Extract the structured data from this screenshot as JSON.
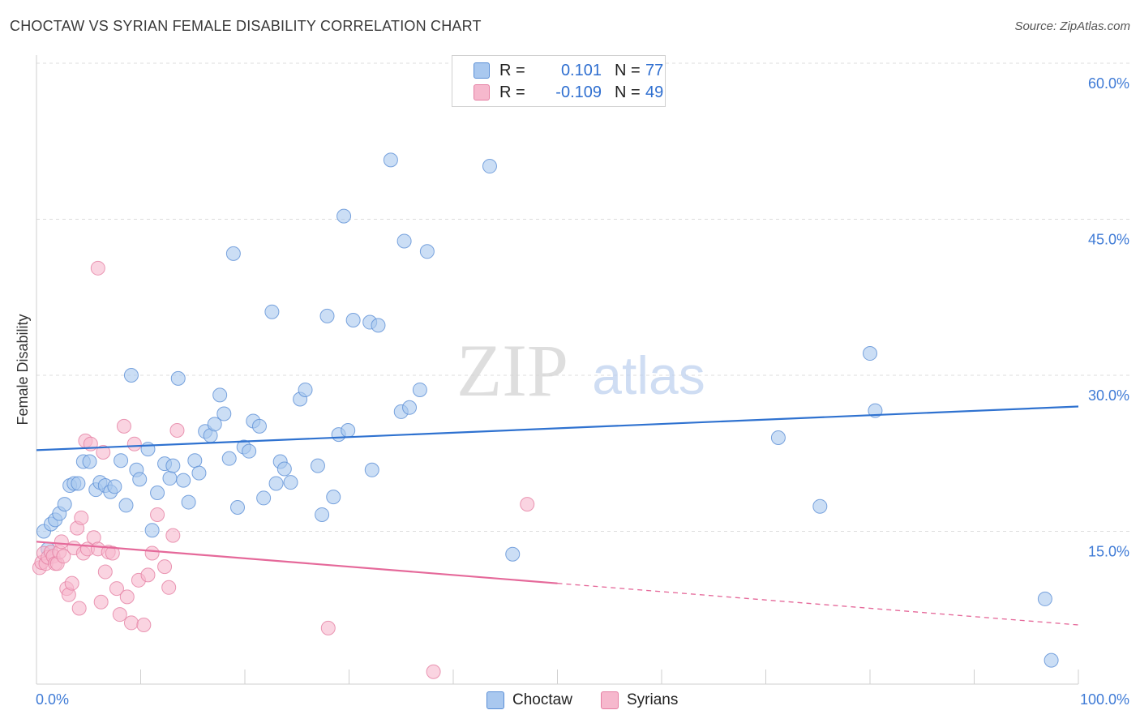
{
  "header": {
    "title": "CHOCTAW VS SYRIAN FEMALE DISABILITY CORRELATION CHART",
    "source": "Source: ZipAtlas.com"
  },
  "watermark": {
    "zip": "ZIP",
    "atlas": "atlas"
  },
  "stats": [
    {
      "r_label": "R =",
      "r_value": "0.101",
      "n_label": "N =",
      "n_value": "77"
    },
    {
      "r_label": "R =",
      "r_value": "-0.109",
      "n_label": "N =",
      "n_value": "49"
    }
  ],
  "legend": {
    "choctaw": "Choctaw",
    "syrians": "Syrians"
  },
  "colors": {
    "choctaw_fill": "#a9c8ef",
    "choctaw_stroke": "#5b8fd6",
    "choctaw_line": "#2f72d0",
    "syrians_fill": "#f6b8cd",
    "syrians_stroke": "#e57fa3",
    "syrians_line": "#e5699a",
    "axis_text": "#3f7bd6",
    "grid": "#dddddd"
  },
  "chart_data": {
    "type": "scatter",
    "title": "CHOCTAW VS SYRIAN FEMALE DISABILITY CORRELATION CHART",
    "xlabel": "",
    "ylabel": "Female Disability",
    "xlim": [
      0,
      100
    ],
    "ylim": [
      0,
      60
    ],
    "x_tick_labels": [
      "0.0%",
      "100.0%"
    ],
    "y_ticks": [
      15,
      30,
      45,
      60
    ],
    "y_tick_labels": [
      "15.0%",
      "30.0%",
      "45.0%",
      "60.0%"
    ],
    "grid": true,
    "series": [
      {
        "name": "Choctaw",
        "trend": {
          "x": [
            0,
            100
          ],
          "y": [
            22.8,
            27.0
          ],
          "solid_to": 100
        },
        "points": [
          [
            0.7,
            15.0
          ],
          [
            1.4,
            15.7
          ],
          [
            1.8,
            16.1
          ],
          [
            2.2,
            16.7
          ],
          [
            2.7,
            17.6
          ],
          [
            3.2,
            19.4
          ],
          [
            3.6,
            19.6
          ],
          [
            4.0,
            19.6
          ],
          [
            4.5,
            21.7
          ],
          [
            5.1,
            21.7
          ],
          [
            5.7,
            19.0
          ],
          [
            6.1,
            19.7
          ],
          [
            6.6,
            19.4
          ],
          [
            7.1,
            18.8
          ],
          [
            7.5,
            19.3
          ],
          [
            8.1,
            21.8
          ],
          [
            8.6,
            17.5
          ],
          [
            9.1,
            30.0
          ],
          [
            9.6,
            20.9
          ],
          [
            9.9,
            20.0
          ],
          [
            10.7,
            22.9
          ],
          [
            11.1,
            15.1
          ],
          [
            11.6,
            18.7
          ],
          [
            12.3,
            21.5
          ],
          [
            12.8,
            20.1
          ],
          [
            13.1,
            21.3
          ],
          [
            13.6,
            29.7
          ],
          [
            14.1,
            19.9
          ],
          [
            14.6,
            17.8
          ],
          [
            15.2,
            21.8
          ],
          [
            15.6,
            20.6
          ],
          [
            16.2,
            24.6
          ],
          [
            16.7,
            24.2
          ],
          [
            17.1,
            25.3
          ],
          [
            17.6,
            28.1
          ],
          [
            18.0,
            26.3
          ],
          [
            18.5,
            22.0
          ],
          [
            18.9,
            41.7
          ],
          [
            19.3,
            17.3
          ],
          [
            19.9,
            23.1
          ],
          [
            20.4,
            22.7
          ],
          [
            20.8,
            25.6
          ],
          [
            21.4,
            25.1
          ],
          [
            21.8,
            18.2
          ],
          [
            22.6,
            36.1
          ],
          [
            23.0,
            19.6
          ],
          [
            23.4,
            21.7
          ],
          [
            23.8,
            21.0
          ],
          [
            24.4,
            19.7
          ],
          [
            25.3,
            27.7
          ],
          [
            25.8,
            28.6
          ],
          [
            27.0,
            21.3
          ],
          [
            27.4,
            16.6
          ],
          [
            27.9,
            35.7
          ],
          [
            28.5,
            18.3
          ],
          [
            29.0,
            24.3
          ],
          [
            29.5,
            45.3
          ],
          [
            29.9,
            24.7
          ],
          [
            30.4,
            35.3
          ],
          [
            32.0,
            35.1
          ],
          [
            32.8,
            34.8
          ],
          [
            32.2,
            20.9
          ],
          [
            34.0,
            50.7
          ],
          [
            35.0,
            26.5
          ],
          [
            35.3,
            42.9
          ],
          [
            35.8,
            26.9
          ],
          [
            36.8,
            28.6
          ],
          [
            37.5,
            41.9
          ],
          [
            43.5,
            50.1
          ],
          [
            45.7,
            12.8
          ],
          [
            71.2,
            24.0
          ],
          [
            75.2,
            17.4
          ],
          [
            80.0,
            32.1
          ],
          [
            80.5,
            26.6
          ],
          [
            96.8,
            8.5
          ],
          [
            97.4,
            2.6
          ],
          [
            1.1,
            13.3
          ]
        ]
      },
      {
        "name": "Syrians",
        "trend": {
          "x": [
            0,
            100
          ],
          "y": [
            14.0,
            6.0
          ],
          "solid_to": 50
        },
        "points": [
          [
            0.3,
            11.5
          ],
          [
            0.5,
            12.0
          ],
          [
            0.7,
            12.9
          ],
          [
            0.9,
            11.9
          ],
          [
            1.1,
            12.5
          ],
          [
            1.4,
            13.0
          ],
          [
            1.6,
            12.6
          ],
          [
            1.8,
            11.9
          ],
          [
            2.0,
            11.9
          ],
          [
            2.2,
            13.0
          ],
          [
            2.4,
            14.0
          ],
          [
            2.6,
            12.6
          ],
          [
            2.9,
            9.5
          ],
          [
            3.1,
            8.9
          ],
          [
            3.4,
            10.0
          ],
          [
            3.6,
            13.4
          ],
          [
            3.9,
            15.3
          ],
          [
            4.1,
            7.6
          ],
          [
            4.3,
            16.3
          ],
          [
            4.5,
            12.9
          ],
          [
            4.7,
            23.7
          ],
          [
            4.9,
            13.3
          ],
          [
            5.2,
            23.4
          ],
          [
            5.5,
            14.4
          ],
          [
            5.9,
            13.3
          ],
          [
            6.2,
            8.2
          ],
          [
            6.4,
            22.6
          ],
          [
            6.6,
            11.1
          ],
          [
            6.9,
            13.0
          ],
          [
            7.3,
            12.9
          ],
          [
            7.7,
            9.5
          ],
          [
            8.0,
            7.0
          ],
          [
            8.4,
            25.1
          ],
          [
            8.7,
            8.7
          ],
          [
            9.1,
            6.2
          ],
          [
            9.4,
            23.4
          ],
          [
            9.8,
            10.3
          ],
          [
            10.3,
            6.0
          ],
          [
            10.7,
            10.8
          ],
          [
            11.1,
            12.9
          ],
          [
            11.6,
            16.6
          ],
          [
            12.3,
            11.6
          ],
          [
            12.7,
            9.6
          ],
          [
            13.1,
            14.6
          ],
          [
            13.5,
            24.7
          ],
          [
            5.9,
            40.3
          ],
          [
            28.0,
            5.7
          ],
          [
            38.1,
            1.5
          ],
          [
            47.1,
            17.6
          ]
        ]
      }
    ]
  }
}
